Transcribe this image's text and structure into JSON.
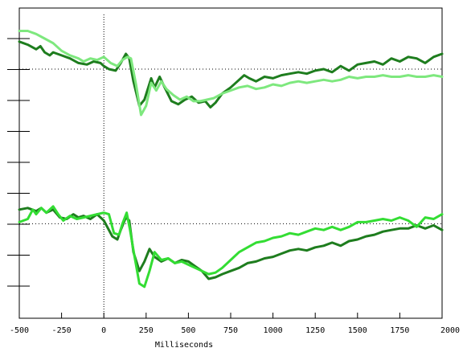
{
  "chart_data": {
    "type": "line",
    "xlabel": "Milliseconds",
    "xlim": [
      -500,
      2000
    ],
    "x_ticks": [
      -500,
      -250,
      0,
      250,
      500,
      750,
      1000,
      1250,
      1500,
      1750,
      2000
    ],
    "x_tick_labels": [
      "-500",
      "-250",
      "0",
      "250",
      "500",
      "750",
      "1000",
      "1250",
      "1500",
      "1750",
      "2000"
    ],
    "y_tick_count": 9,
    "y_tick_labels_visible": false,
    "grid": false,
    "legend": "none",
    "panels": [
      {
        "position": "top",
        "baseline": 0,
        "ylim": [
          -6,
          4
        ],
        "series": [
          {
            "color": "#1e7d1e",
            "points": [
              [
                -500,
                1.8
              ],
              [
                -450,
                1.6
              ],
              [
                -400,
                1.3
              ],
              [
                -375,
                1.5
              ],
              [
                -350,
                1.1
              ],
              [
                -320,
                0.9
              ],
              [
                -300,
                1.1
              ],
              [
                -250,
                0.9
              ],
              [
                -200,
                0.7
              ],
              [
                -150,
                0.4
              ],
              [
                -100,
                0.3
              ],
              [
                -60,
                0.5
              ],
              [
                -20,
                0.4
              ],
              [
                0,
                0.2
              ],
              [
                30,
                0.0
              ],
              [
                70,
                -0.1
              ],
              [
                100,
                0.4
              ],
              [
                130,
                1.0
              ],
              [
                150,
                0.7
              ],
              [
                175,
                -0.8
              ],
              [
                210,
                -2.4
              ],
              [
                240,
                -2.0
              ],
              [
                280,
                -0.6
              ],
              [
                300,
                -1.2
              ],
              [
                330,
                -0.5
              ],
              [
                360,
                -1.2
              ],
              [
                400,
                -2.1
              ],
              [
                440,
                -2.3
              ],
              [
                480,
                -2.0
              ],
              [
                520,
                -1.8
              ],
              [
                560,
                -2.2
              ],
              [
                600,
                -2.1
              ],
              [
                630,
                -2.5
              ],
              [
                660,
                -2.2
              ],
              [
                700,
                -1.6
              ],
              [
                750,
                -1.2
              ],
              [
                800,
                -0.7
              ],
              [
                830,
                -0.4
              ],
              [
                860,
                -0.6
              ],
              [
                900,
                -0.8
              ],
              [
                950,
                -0.5
              ],
              [
                1000,
                -0.6
              ],
              [
                1050,
                -0.4
              ],
              [
                1100,
                -0.3
              ],
              [
                1150,
                -0.2
              ],
              [
                1200,
                -0.3
              ],
              [
                1250,
                -0.1
              ],
              [
                1300,
                0.0
              ],
              [
                1350,
                -0.2
              ],
              [
                1400,
                0.2
              ],
              [
                1450,
                -0.1
              ],
              [
                1500,
                0.3
              ],
              [
                1550,
                0.4
              ],
              [
                1600,
                0.5
              ],
              [
                1650,
                0.3
              ],
              [
                1700,
                0.7
              ],
              [
                1750,
                0.5
              ],
              [
                1800,
                0.8
              ],
              [
                1850,
                0.7
              ],
              [
                1900,
                0.4
              ],
              [
                1950,
                0.8
              ],
              [
                2000,
                1.0
              ]
            ]
          },
          {
            "color": "#7ee87e",
            "points": [
              [
                -500,
                2.5
              ],
              [
                -450,
                2.5
              ],
              [
                -400,
                2.3
              ],
              [
                -350,
                2.0
              ],
              [
                -300,
                1.7
              ],
              [
                -250,
                1.2
              ],
              [
                -200,
                0.9
              ],
              [
                -150,
                0.7
              ],
              [
                -120,
                0.5
              ],
              [
                -80,
                0.7
              ],
              [
                -40,
                0.6
              ],
              [
                0,
                0.8
              ],
              [
                40,
                0.4
              ],
              [
                80,
                0.2
              ],
              [
                110,
                0.6
              ],
              [
                140,
                0.8
              ],
              [
                160,
                0.7
              ],
              [
                190,
                -1.0
              ],
              [
                220,
                -3.0
              ],
              [
                250,
                -2.4
              ],
              [
                280,
                -0.9
              ],
              [
                310,
                -1.4
              ],
              [
                340,
                -0.8
              ],
              [
                370,
                -1.3
              ],
              [
                410,
                -1.7
              ],
              [
                450,
                -2.0
              ],
              [
                490,
                -1.8
              ],
              [
                530,
                -2.1
              ],
              [
                570,
                -2.1
              ],
              [
                610,
                -2.0
              ],
              [
                650,
                -1.9
              ],
              [
                700,
                -1.6
              ],
              [
                750,
                -1.4
              ],
              [
                800,
                -1.2
              ],
              [
                850,
                -1.1
              ],
              [
                900,
                -1.3
              ],
              [
                950,
                -1.2
              ],
              [
                1000,
                -1.0
              ],
              [
                1050,
                -1.1
              ],
              [
                1100,
                -0.9
              ],
              [
                1150,
                -0.8
              ],
              [
                1200,
                -0.9
              ],
              [
                1250,
                -0.8
              ],
              [
                1300,
                -0.7
              ],
              [
                1350,
                -0.8
              ],
              [
                1400,
                -0.7
              ],
              [
                1450,
                -0.5
              ],
              [
                1500,
                -0.6
              ],
              [
                1550,
                -0.5
              ],
              [
                1600,
                -0.5
              ],
              [
                1650,
                -0.4
              ],
              [
                1700,
                -0.5
              ],
              [
                1750,
                -0.5
              ],
              [
                1800,
                -0.4
              ],
              [
                1850,
                -0.5
              ],
              [
                1900,
                -0.5
              ],
              [
                1950,
                -0.4
              ],
              [
                2000,
                -0.5
              ]
            ]
          }
        ]
      },
      {
        "position": "bottom",
        "baseline": 0,
        "ylim": [
          -6,
          4
        ],
        "series": [
          {
            "color": "#1e7d1e",
            "points": [
              [
                -500,
                0.9
              ],
              [
                -450,
                1.0
              ],
              [
                -400,
                0.8
              ],
              [
                -370,
                1.0
              ],
              [
                -340,
                0.7
              ],
              [
                -300,
                0.9
              ],
              [
                -260,
                0.4
              ],
              [
                -220,
                0.3
              ],
              [
                -180,
                0.6
              ],
              [
                -150,
                0.4
              ],
              [
                -120,
                0.5
              ],
              [
                -80,
                0.3
              ],
              [
                -40,
                0.6
              ],
              [
                0,
                0.2
              ],
              [
                50,
                -0.8
              ],
              [
                80,
                -1.0
              ],
              [
                100,
                -0.4
              ],
              [
                130,
                0.4
              ],
              [
                150,
                0.2
              ],
              [
                175,
                -1.8
              ],
              [
                210,
                -3.0
              ],
              [
                240,
                -2.4
              ],
              [
                270,
                -1.6
              ],
              [
                300,
                -2.1
              ],
              [
                340,
                -2.4
              ],
              [
                380,
                -2.2
              ],
              [
                420,
                -2.5
              ],
              [
                460,
                -2.3
              ],
              [
                500,
                -2.4
              ],
              [
                540,
                -2.7
              ],
              [
                580,
                -3.0
              ],
              [
                620,
                -3.5
              ],
              [
                660,
                -3.4
              ],
              [
                700,
                -3.2
              ],
              [
                750,
                -3.0
              ],
              [
                800,
                -2.8
              ],
              [
                850,
                -2.5
              ],
              [
                900,
                -2.4
              ],
              [
                950,
                -2.2
              ],
              [
                1000,
                -2.1
              ],
              [
                1050,
                -1.9
              ],
              [
                1100,
                -1.7
              ],
              [
                1150,
                -1.6
              ],
              [
                1200,
                -1.7
              ],
              [
                1250,
                -1.5
              ],
              [
                1300,
                -1.4
              ],
              [
                1350,
                -1.2
              ],
              [
                1400,
                -1.4
              ],
              [
                1450,
                -1.1
              ],
              [
                1500,
                -1.0
              ],
              [
                1550,
                -0.8
              ],
              [
                1600,
                -0.7
              ],
              [
                1650,
                -0.5
              ],
              [
                1700,
                -0.4
              ],
              [
                1750,
                -0.3
              ],
              [
                1800,
                -0.3
              ],
              [
                1850,
                -0.1
              ],
              [
                1900,
                -0.3
              ],
              [
                1950,
                -0.1
              ],
              [
                2000,
                -0.4
              ]
            ]
          },
          {
            "color": "#33dd33",
            "points": [
              [
                -500,
                0.1
              ],
              [
                -450,
                0.3
              ],
              [
                -420,
                0.9
              ],
              [
                -400,
                0.6
              ],
              [
                -370,
                1.0
              ],
              [
                -340,
                0.7
              ],
              [
                -300,
                1.1
              ],
              [
                -270,
                0.6
              ],
              [
                -240,
                0.2
              ],
              [
                -200,
                0.5
              ],
              [
                -160,
                0.3
              ],
              [
                -120,
                0.4
              ],
              [
                -80,
                0.5
              ],
              [
                -40,
                0.6
              ],
              [
                0,
                0.7
              ],
              [
                30,
                0.6
              ],
              [
                60,
                -0.6
              ],
              [
                90,
                -0.7
              ],
              [
                110,
                0.0
              ],
              [
                135,
                0.7
              ],
              [
                155,
                -0.4
              ],
              [
                180,
                -2.0
              ],
              [
                210,
                -3.8
              ],
              [
                240,
                -4.0
              ],
              [
                270,
                -3.0
              ],
              [
                300,
                -1.8
              ],
              [
                340,
                -2.3
              ],
              [
                380,
                -2.2
              ],
              [
                420,
                -2.5
              ],
              [
                460,
                -2.4
              ],
              [
                500,
                -2.6
              ],
              [
                540,
                -2.8
              ],
              [
                580,
                -3.0
              ],
              [
                620,
                -3.2
              ],
              [
                660,
                -3.1
              ],
              [
                700,
                -2.8
              ],
              [
                750,
                -2.3
              ],
              [
                800,
                -1.8
              ],
              [
                850,
                -1.5
              ],
              [
                900,
                -1.2
              ],
              [
                950,
                -1.1
              ],
              [
                1000,
                -0.9
              ],
              [
                1050,
                -0.8
              ],
              [
                1100,
                -0.6
              ],
              [
                1150,
                -0.7
              ],
              [
                1200,
                -0.5
              ],
              [
                1250,
                -0.3
              ],
              [
                1300,
                -0.4
              ],
              [
                1350,
                -0.2
              ],
              [
                1400,
                -0.4
              ],
              [
                1450,
                -0.2
              ],
              [
                1500,
                0.1
              ],
              [
                1550,
                0.1
              ],
              [
                1600,
                0.2
              ],
              [
                1650,
                0.3
              ],
              [
                1700,
                0.2
              ],
              [
                1750,
                0.4
              ],
              [
                1800,
                0.2
              ],
              [
                1850,
                -0.2
              ],
              [
                1900,
                0.4
              ],
              [
                1950,
                0.3
              ],
              [
                2000,
                0.6
              ]
            ]
          }
        ]
      }
    ]
  }
}
